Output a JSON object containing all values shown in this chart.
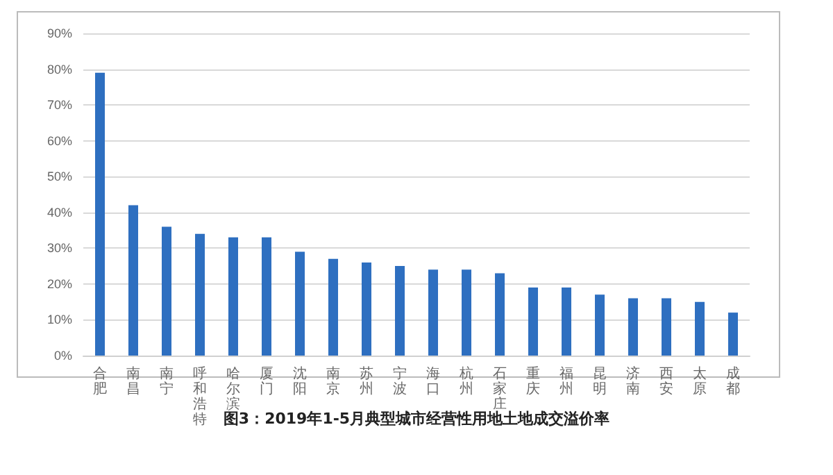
{
  "chart_data": {
    "type": "bar",
    "title": "图3：2019年1-5月典型城市经营性用地土地成交溢价率",
    "categories": [
      "合肥",
      "南昌",
      "南宁",
      "呼和浩特",
      "哈尔滨",
      "厦门",
      "沈阳",
      "南京",
      "苏州",
      "宁波",
      "海口",
      "杭州",
      "石家庄",
      "重庆",
      "福州",
      "昆明",
      "济南",
      "西安",
      "太原",
      "成都"
    ],
    "values": [
      79,
      42,
      36,
      34,
      33,
      33,
      29,
      27,
      26,
      25,
      24,
      24,
      23,
      19,
      19,
      17,
      16,
      16,
      15,
      12
    ],
    "color": "#2e6fc0",
    "ylim": [
      0,
      90
    ],
    "yticks": [
      {
        "value": 0,
        "label": "0%"
      },
      {
        "value": 10,
        "label": "10%"
      },
      {
        "value": 20,
        "label": "20%"
      },
      {
        "value": 30,
        "label": "30%"
      },
      {
        "value": 40,
        "label": "40%"
      },
      {
        "value": 50,
        "label": "50%"
      },
      {
        "value": 60,
        "label": "60%"
      },
      {
        "value": 70,
        "label": "70%"
      },
      {
        "value": 80,
        "label": "80%"
      },
      {
        "value": 90,
        "label": "90%"
      }
    ],
    "grid": "y"
  }
}
